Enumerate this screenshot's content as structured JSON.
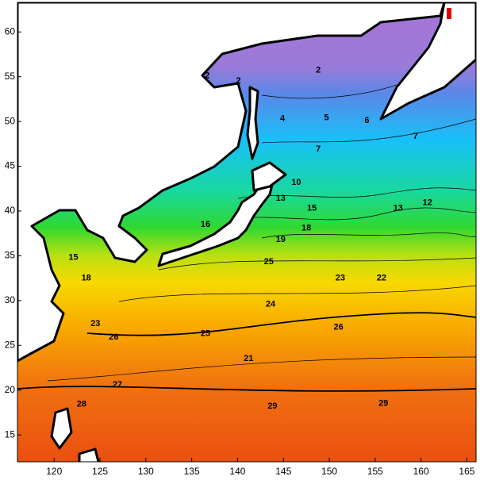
{
  "chart_data": {
    "type": "contour",
    "xlim": [
      116,
      166
    ],
    "ylim": [
      12,
      63.3
    ],
    "xticks": [
      120,
      125,
      130,
      135,
      140,
      145,
      150,
      155,
      160,
      165
    ],
    "yticks": [
      15,
      20,
      25,
      30,
      35,
      40,
      45,
      50,
      55,
      60
    ],
    "contour_labels": [
      {
        "value": 2,
        "lon": 140.1,
        "lat": 54.5
      },
      {
        "value": 2,
        "lon": 136.7,
        "lat": 55.1
      },
      {
        "value": 2,
        "lon": 148.8,
        "lat": 55.7
      },
      {
        "value": 4,
        "lon": 144.9,
        "lat": 50.3
      },
      {
        "value": 5,
        "lon": 149.7,
        "lat": 50.4
      },
      {
        "value": 6,
        "lon": 154.1,
        "lat": 50.1
      },
      {
        "value": 7,
        "lon": 159.4,
        "lat": 48.3
      },
      {
        "value": 7,
        "lon": 148.8,
        "lat": 46.9
      },
      {
        "value": 10,
        "lon": 146.4,
        "lat": 43.2
      },
      {
        "value": 13,
        "lon": 144.7,
        "lat": 41.4
      },
      {
        "value": 13,
        "lon": 157.5,
        "lat": 40.3
      },
      {
        "value": 12,
        "lon": 160.7,
        "lat": 40.9
      },
      {
        "value": 15,
        "lon": 148.1,
        "lat": 40.3
      },
      {
        "value": 16,
        "lon": 136.5,
        "lat": 38.5
      },
      {
        "value": 18,
        "lon": 147.5,
        "lat": 38.1
      },
      {
        "value": 19,
        "lon": 144.7,
        "lat": 36.8
      },
      {
        "value": 15,
        "lon": 122.1,
        "lat": 34.8
      },
      {
        "value": 18,
        "lon": 123.5,
        "lat": 32.5
      },
      {
        "value": 23,
        "lon": 151.2,
        "lat": 32.5
      },
      {
        "value": 22,
        "lon": 155.7,
        "lat": 32.5
      },
      {
        "value": 25,
        "lon": 143.4,
        "lat": 34.3
      },
      {
        "value": 24,
        "lon": 143.6,
        "lat": 29.6
      },
      {
        "value": 23,
        "lon": 124.5,
        "lat": 27.4
      },
      {
        "value": 25,
        "lon": 136.5,
        "lat": 26.3
      },
      {
        "value": 26,
        "lon": 126.5,
        "lat": 25.9
      },
      {
        "value": 26,
        "lon": 151,
        "lat": 27
      },
      {
        "value": 21,
        "lon": 141.2,
        "lat": 23.5
      },
      {
        "value": 27,
        "lon": 126.9,
        "lat": 20.6
      },
      {
        "value": 28,
        "lon": 123,
        "lat": 18.4
      },
      {
        "value": 29,
        "lon": 143.8,
        "lat": 18.2
      },
      {
        "value": 29,
        "lon": 155.9,
        "lat": 18.5
      }
    ]
  }
}
